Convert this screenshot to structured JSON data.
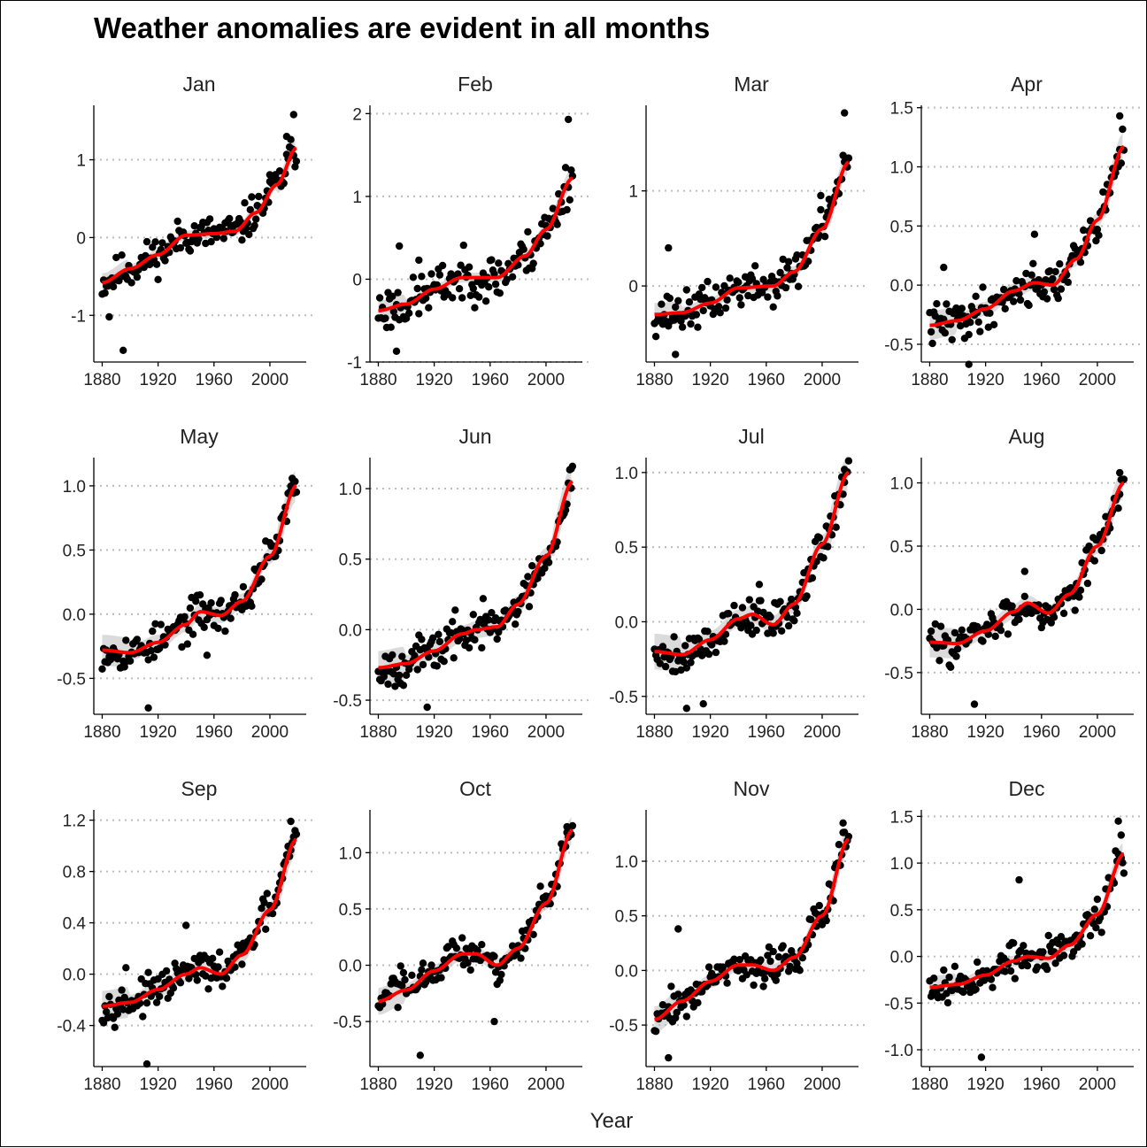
{
  "title": "Weather anomalies are evident in all months",
  "chart_data": {
    "type": "scatter",
    "title": "Weather anomalies are evident in all months",
    "xlabel": "Year",
    "xlim": [
      1874,
      2026
    ],
    "x_ticks": [
      1880,
      1920,
      1960,
      2000
    ],
    "grid": "horizontal dotted",
    "smoother": {
      "color": "#ff0000",
      "band_color": "#bdbdbd"
    },
    "point_color": "#000000",
    "facets": [
      {
        "month": "Jan",
        "ylim": [
          -1.6,
          1.7
        ],
        "y_ticks": [
          -1,
          0,
          1
        ],
        "y_tick_labels": [
          "-1",
          "0",
          "1"
        ],
        "trend": [
          [
            1880,
            -0.58
          ],
          [
            1900,
            -0.4
          ],
          [
            1920,
            -0.22
          ],
          [
            1940,
            0.03
          ],
          [
            1960,
            0.05
          ],
          [
            1975,
            0.08
          ],
          [
            1990,
            0.32
          ],
          [
            2005,
            0.68
          ],
          [
            2019,
            1.15
          ]
        ],
        "spread": 0.25,
        "seed": 11,
        "extras": [
          [
            1895,
            -1.45
          ],
          [
            1885,
            -1.02
          ],
          [
            2017,
            1.58
          ],
          [
            2012,
            1.3
          ],
          [
            2000,
            0.72
          ]
        ]
      },
      {
        "month": "Feb",
        "ylim": [
          -1.0,
          2.1
        ],
        "y_ticks": [
          -1,
          0,
          1,
          2
        ],
        "y_tick_labels": [
          "-1",
          "0",
          "1",
          "2"
        ],
        "trend": [
          [
            1880,
            -0.38
          ],
          [
            1900,
            -0.3
          ],
          [
            1920,
            -0.12
          ],
          [
            1940,
            0.02
          ],
          [
            1950,
            0.02
          ],
          [
            1965,
            0.02
          ],
          [
            1985,
            0.28
          ],
          [
            2000,
            0.6
          ],
          [
            2019,
            1.22
          ]
        ],
        "spread": 0.3,
        "seed": 23,
        "extras": [
          [
            2016,
            1.93
          ],
          [
            1893,
            -0.87
          ],
          [
            1909,
            0.23
          ],
          [
            1895,
            0.4
          ]
        ]
      },
      {
        "month": "Mar",
        "ylim": [
          -0.8,
          1.9
        ],
        "y_ticks": [
          0,
          1
        ],
        "y_tick_labels": [
          "0",
          "1"
        ],
        "trend": [
          [
            1880,
            -0.3
          ],
          [
            1900,
            -0.28
          ],
          [
            1920,
            -0.18
          ],
          [
            1940,
            -0.02
          ],
          [
            1965,
            0.0
          ],
          [
            1980,
            0.15
          ],
          [
            2000,
            0.6
          ],
          [
            2019,
            1.3
          ]
        ],
        "spread": 0.22,
        "seed": 37,
        "extras": [
          [
            2016,
            1.82
          ],
          [
            1895,
            -0.72
          ],
          [
            1999,
            0.95
          ],
          [
            1890,
            0.4
          ]
        ]
      },
      {
        "month": "Apr",
        "ylim": [
          -0.65,
          1.52
        ],
        "y_ticks": [
          -0.5,
          0.0,
          0.5,
          1.0,
          1.5
        ],
        "y_tick_labels": [
          "-0.5",
          "0.0",
          "0.5",
          "1.0",
          "1.5"
        ],
        "trend": [
          [
            1880,
            -0.34
          ],
          [
            1900,
            -0.3
          ],
          [
            1920,
            -0.2
          ],
          [
            1940,
            -0.05
          ],
          [
            1955,
            0.02
          ],
          [
            1968,
            0.0
          ],
          [
            1985,
            0.22
          ],
          [
            2000,
            0.55
          ],
          [
            2019,
            1.17
          ]
        ],
        "spread": 0.18,
        "seed": 41,
        "extras": [
          [
            2016,
            1.43
          ],
          [
            1908,
            -0.67
          ],
          [
            1955,
            0.43
          ],
          [
            1890,
            0.15
          ]
        ]
      },
      {
        "month": "May",
        "ylim": [
          -0.78,
          1.22
        ],
        "y_ticks": [
          -0.5,
          0.0,
          0.5,
          1.0
        ],
        "y_tick_labels": [
          "-0.5",
          "0.0",
          "0.5",
          "1.0"
        ],
        "trend": [
          [
            1880,
            -0.28
          ],
          [
            1900,
            -0.3
          ],
          [
            1920,
            -0.22
          ],
          [
            1940,
            -0.08
          ],
          [
            1950,
            0.02
          ],
          [
            1965,
            -0.01
          ],
          [
            1980,
            0.1
          ],
          [
            2000,
            0.45
          ],
          [
            2019,
            1.0
          ]
        ],
        "spread": 0.15,
        "seed": 53,
        "extras": [
          [
            1913,
            -0.73
          ],
          [
            1955,
            -0.32
          ],
          [
            2017,
            1.04
          ]
        ]
      },
      {
        "month": "Jun",
        "ylim": [
          -0.6,
          1.22
        ],
        "y_ticks": [
          -0.5,
          0.0,
          0.5,
          1.0
        ],
        "y_tick_labels": [
          "-0.5",
          "0.0",
          "0.5",
          "1.0"
        ],
        "trend": [
          [
            1880,
            -0.27
          ],
          [
            1900,
            -0.24
          ],
          [
            1920,
            -0.15
          ],
          [
            1940,
            -0.03
          ],
          [
            1950,
            0.0
          ],
          [
            1965,
            0.02
          ],
          [
            1980,
            0.18
          ],
          [
            2000,
            0.52
          ],
          [
            2019,
            1.05
          ]
        ],
        "spread": 0.15,
        "seed": 67,
        "extras": [
          [
            2018,
            1.14
          ],
          [
            1915,
            -0.55
          ],
          [
            1955,
            0.22
          ]
        ]
      },
      {
        "month": "Jul",
        "ylim": [
          -0.62,
          1.1
        ],
        "y_ticks": [
          -0.5,
          0.0,
          0.5,
          1.0
        ],
        "y_tick_labels": [
          "-0.5",
          "0.0",
          "0.5",
          "1.0"
        ],
        "trend": [
          [
            1880,
            -0.2
          ],
          [
            1900,
            -0.22
          ],
          [
            1920,
            -0.12
          ],
          [
            1940,
            0.02
          ],
          [
            1950,
            0.05
          ],
          [
            1965,
            -0.02
          ],
          [
            1980,
            0.12
          ],
          [
            2000,
            0.52
          ],
          [
            2019,
            1.0
          ]
        ],
        "spread": 0.14,
        "seed": 79,
        "extras": [
          [
            2016,
            1.02
          ],
          [
            1903,
            -0.58
          ],
          [
            1915,
            -0.55
          ],
          [
            1955,
            0.25
          ]
        ]
      },
      {
        "month": "Aug",
        "ylim": [
          -0.83,
          1.2
        ],
        "y_ticks": [
          -0.5,
          0.0,
          0.5,
          1.0
        ],
        "y_tick_labels": [
          "-0.5",
          "0.0",
          "0.5",
          "1.0"
        ],
        "trend": [
          [
            1880,
            -0.26
          ],
          [
            1900,
            -0.27
          ],
          [
            1920,
            -0.17
          ],
          [
            1940,
            -0.02
          ],
          [
            1950,
            0.05
          ],
          [
            1965,
            -0.03
          ],
          [
            1980,
            0.12
          ],
          [
            2000,
            0.5
          ],
          [
            2019,
            1.0
          ]
        ],
        "spread": 0.15,
        "seed": 83,
        "extras": [
          [
            2016,
            1.08
          ],
          [
            1912,
            -0.75
          ],
          [
            1948,
            0.3
          ]
        ]
      },
      {
        "month": "Sep",
        "ylim": [
          -0.72,
          1.28
        ],
        "y_ticks": [
          -0.4,
          0.0,
          0.4,
          0.8,
          1.2
        ],
        "y_tick_labels": [
          "-0.4",
          "0.0",
          "0.4",
          "0.8",
          "1.2"
        ],
        "trend": [
          [
            1880,
            -0.25
          ],
          [
            1900,
            -0.22
          ],
          [
            1920,
            -0.12
          ],
          [
            1940,
            0.0
          ],
          [
            1950,
            0.05
          ],
          [
            1965,
            0.0
          ],
          [
            1980,
            0.15
          ],
          [
            2000,
            0.5
          ],
          [
            2019,
            1.05
          ]
        ],
        "spread": 0.13,
        "seed": 97,
        "extras": [
          [
            2015,
            1.19
          ],
          [
            1912,
            -0.7
          ],
          [
            1897,
            0.05
          ],
          [
            1940,
            0.38
          ]
        ]
      },
      {
        "month": "Oct",
        "ylim": [
          -0.9,
          1.38
        ],
        "y_ticks": [
          -0.5,
          0.0,
          0.5,
          1.0
        ],
        "y_tick_labels": [
          "-0.5",
          "0.0",
          "0.5",
          "1.0"
        ],
        "trend": [
          [
            1880,
            -0.32
          ],
          [
            1900,
            -0.22
          ],
          [
            1920,
            -0.05
          ],
          [
            1940,
            0.1
          ],
          [
            1950,
            0.1
          ],
          [
            1965,
            0.0
          ],
          [
            1980,
            0.15
          ],
          [
            2000,
            0.55
          ],
          [
            2019,
            1.2
          ]
        ],
        "spread": 0.17,
        "seed": 103,
        "extras": [
          [
            2015,
            1.23
          ],
          [
            1910,
            -0.8
          ],
          [
            1963,
            -0.5
          ]
        ]
      },
      {
        "month": "Nov",
        "ylim": [
          -0.88,
          1.47
        ],
        "y_ticks": [
          -0.5,
          0.0,
          0.5,
          1.0
        ],
        "y_tick_labels": [
          "-0.5",
          "0.0",
          "0.5",
          "1.0"
        ],
        "trend": [
          [
            1880,
            -0.45
          ],
          [
            1900,
            -0.28
          ],
          [
            1920,
            -0.1
          ],
          [
            1940,
            0.05
          ],
          [
            1950,
            0.05
          ],
          [
            1965,
            0.0
          ],
          [
            1980,
            0.12
          ],
          [
            2000,
            0.5
          ],
          [
            2019,
            1.2
          ]
        ],
        "spread": 0.18,
        "seed": 109,
        "extras": [
          [
            2015,
            1.35
          ],
          [
            1890,
            -0.8
          ],
          [
            1897,
            0.38
          ]
        ]
      },
      {
        "month": "Dec",
        "ylim": [
          -1.18,
          1.57
        ],
        "y_ticks": [
          -1.0,
          -0.5,
          0.0,
          0.5,
          1.0,
          1.5
        ],
        "y_tick_labels": [
          "-1.0",
          "-0.5",
          "0.0",
          "0.5",
          "1.0",
          "1.5"
        ],
        "trend": [
          [
            1880,
            -0.33
          ],
          [
            1900,
            -0.3
          ],
          [
            1920,
            -0.2
          ],
          [
            1940,
            -0.05
          ],
          [
            1950,
            0.0
          ],
          [
            1965,
            -0.02
          ],
          [
            1980,
            0.12
          ],
          [
            2000,
            0.45
          ],
          [
            2019,
            1.1
          ]
        ],
        "spread": 0.2,
        "seed": 127,
        "extras": [
          [
            2015,
            1.45
          ],
          [
            1917,
            -1.08
          ],
          [
            1944,
            0.82
          ],
          [
            2017,
            1.3
          ]
        ]
      }
    ]
  }
}
